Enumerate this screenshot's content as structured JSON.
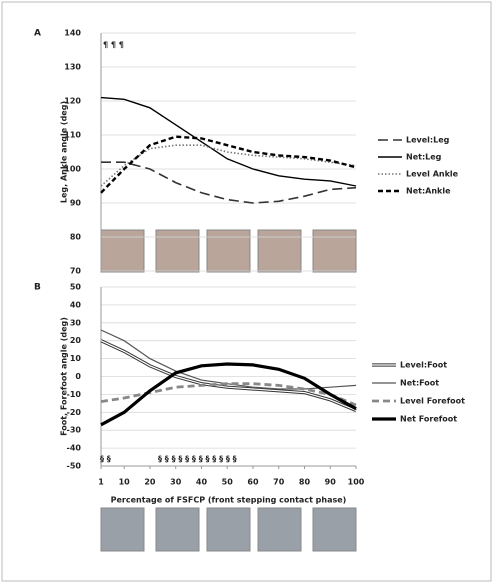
{
  "chart_data": [
    {
      "type": "line",
      "panel": "A",
      "ylabel": "Leg, Ankle angle (deg)",
      "x": [
        1,
        10,
        20,
        30,
        40,
        50,
        60,
        70,
        80,
        90,
        100
      ],
      "xlim": [
        1,
        100
      ],
      "ylim": [
        70,
        140
      ],
      "yticks": [
        70,
        80,
        90,
        100,
        110,
        120,
        130,
        140
      ],
      "grid": true,
      "annotations": [
        "¶ ¶ ¶"
      ],
      "series": [
        {
          "name": "Level:Leg",
          "color": "#333333",
          "style": "longdash",
          "values": [
            102,
            102,
            100,
            96,
            93,
            91,
            90,
            90.5,
            92,
            94,
            94.5
          ]
        },
        {
          "name": "Net:Leg",
          "color": "#000000",
          "style": "solid",
          "values": [
            121,
            120.5,
            118,
            113,
            108,
            103,
            100,
            98,
            97,
            96.5,
            95
          ]
        },
        {
          "name": "Level Ankle",
          "color": "#777777",
          "style": "dotted",
          "values": [
            95,
            101,
            106,
            107,
            107,
            105,
            104,
            103.5,
            103,
            102,
            101
          ]
        },
        {
          "name": "Net:Ankle",
          "color": "#000000",
          "style": "dash",
          "values": [
            93,
            100,
            107,
            109.5,
            109,
            107,
            105,
            104,
            103.5,
            102.5,
            100.5
          ]
        }
      ]
    },
    {
      "type": "line",
      "panel": "B",
      "ylabel": "Foot, Forefoot angle (deg)",
      "xlabel": "Percentage of FSFCP (front stepping contact phase)",
      "x": [
        1,
        10,
        20,
        30,
        40,
        50,
        60,
        70,
        80,
        90,
        100
      ],
      "xlim": [
        1,
        100
      ],
      "xticks": [
        1,
        10,
        20,
        30,
        40,
        50,
        60,
        70,
        80,
        90,
        100
      ],
      "ylim": [
        -50,
        50
      ],
      "yticks": [
        -50,
        -40,
        -30,
        -20,
        -10,
        0,
        10,
        20,
        30,
        40,
        50
      ],
      "grid": true,
      "annotations": [
        "§ §",
        "§ § § § § § § § § § § §"
      ],
      "series": [
        {
          "name": "Level:Foot",
          "color": "#333333",
          "style": "double",
          "values": [
            20,
            14,
            6,
            0,
            -4,
            -6,
            -7,
            -8,
            -9,
            -13,
            -19
          ]
        },
        {
          "name": "Net:Foot",
          "color": "#555555",
          "style": "thin",
          "values": [
            26,
            20,
            10,
            3,
            -2,
            -4,
            -6,
            -7,
            -7,
            -6,
            -5
          ]
        },
        {
          "name": "Level Forefoot",
          "color": "#888888",
          "style": "graydash",
          "values": [
            -14,
            -12,
            -9,
            -6,
            -5,
            -4,
            -4,
            -5,
            -7,
            -10,
            -16
          ]
        },
        {
          "name": "Net Forefoot",
          "color": "#000000",
          "style": "thick",
          "values": [
            -27,
            -20,
            -8,
            2,
            6,
            7,
            6.5,
            4,
            -1,
            -10,
            -18
          ]
        }
      ]
    }
  ]
}
